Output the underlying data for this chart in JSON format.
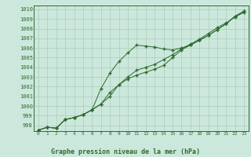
{
  "x": [
    0,
    1,
    2,
    3,
    4,
    5,
    6,
    7,
    8,
    9,
    10,
    11,
    12,
    13,
    14,
    15,
    16,
    17,
    18,
    19,
    20,
    21,
    22,
    23
  ],
  "line1": [
    997.5,
    997.8,
    997.7,
    998.6,
    998.8,
    999.1,
    999.6,
    1000.2,
    1001.4,
    1002.2,
    1002.8,
    1003.2,
    1003.5,
    1003.8,
    1004.2,
    1005.0,
    1005.8,
    1006.3,
    1006.8,
    1007.3,
    1007.9,
    1008.5,
    1009.3,
    1009.8
  ],
  "line2": [
    997.5,
    997.8,
    997.7,
    998.6,
    998.8,
    999.1,
    999.6,
    1001.8,
    1003.4,
    1004.6,
    1005.5,
    1006.3,
    1006.2,
    1006.1,
    1005.9,
    1005.8,
    1006.0,
    1006.3,
    1006.8,
    1007.3,
    1007.9,
    1008.5,
    1009.3,
    1009.8
  ],
  "line3": [
    997.5,
    997.8,
    997.7,
    998.6,
    998.8,
    999.1,
    999.6,
    1000.2,
    1001.0,
    1002.2,
    1003.0,
    1003.7,
    1004.0,
    1004.3,
    1004.8,
    1005.3,
    1005.9,
    1006.4,
    1006.9,
    1007.5,
    1008.1,
    1008.6,
    1009.2,
    1009.7
  ],
  "line_color": "#2d6a2d",
  "bg_color": "#cce8dc",
  "grid_color": "#aaccbb",
  "xlabel": "Graphe pression niveau de la mer (hPa)",
  "yticks": [
    998,
    999,
    1000,
    1001,
    1002,
    1003,
    1004,
    1005,
    1006,
    1007,
    1008,
    1009,
    1010
  ],
  "xticks": [
    0,
    1,
    2,
    3,
    4,
    5,
    6,
    7,
    8,
    9,
    10,
    11,
    12,
    13,
    14,
    15,
    16,
    17,
    18,
    19,
    20,
    21,
    22,
    23
  ],
  "ylim": [
    997.4,
    1010.4
  ],
  "xlim": [
    -0.5,
    23.5
  ]
}
